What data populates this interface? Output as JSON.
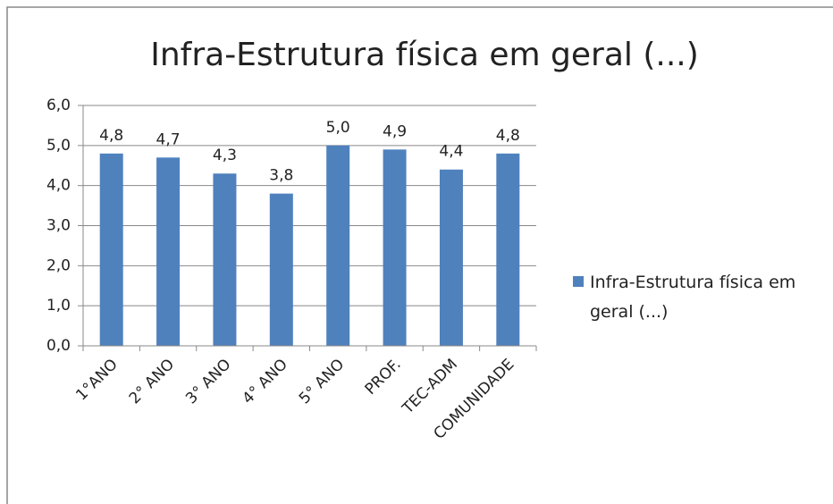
{
  "chart_data": {
    "type": "bar",
    "title": "Infra-Estrutura física em geral (...)",
    "categories": [
      "1°ANO",
      "2° ANO",
      "3° ANO",
      "4° ANO",
      "5° ANO",
      "PROF.",
      "TEC-ADM",
      "COMUNIDADE"
    ],
    "series": [
      {
        "name": "Infra-Estrutura física em geral (...)",
        "color": "#4f81bd",
        "values": [
          4.8,
          4.7,
          4.3,
          3.8,
          5.0,
          4.9,
          4.4,
          4.8
        ],
        "value_labels": [
          "4,8",
          "4,7",
          "4,3",
          "3,8",
          "5,0",
          "4,9",
          "4,4",
          "4,8"
        ]
      }
    ],
    "ylim": [
      0,
      6
    ],
    "yticks": [
      {
        "value": 0,
        "label": "0,0"
      },
      {
        "value": 1,
        "label": "1,0"
      },
      {
        "value": 2,
        "label": "2,0"
      },
      {
        "value": 3,
        "label": "3,0"
      },
      {
        "value": 4,
        "label": "4,0"
      },
      {
        "value": 5,
        "label": "5,0"
      },
      {
        "value": 6,
        "label": "6,0"
      }
    ],
    "grid": true,
    "legend": "right"
  }
}
